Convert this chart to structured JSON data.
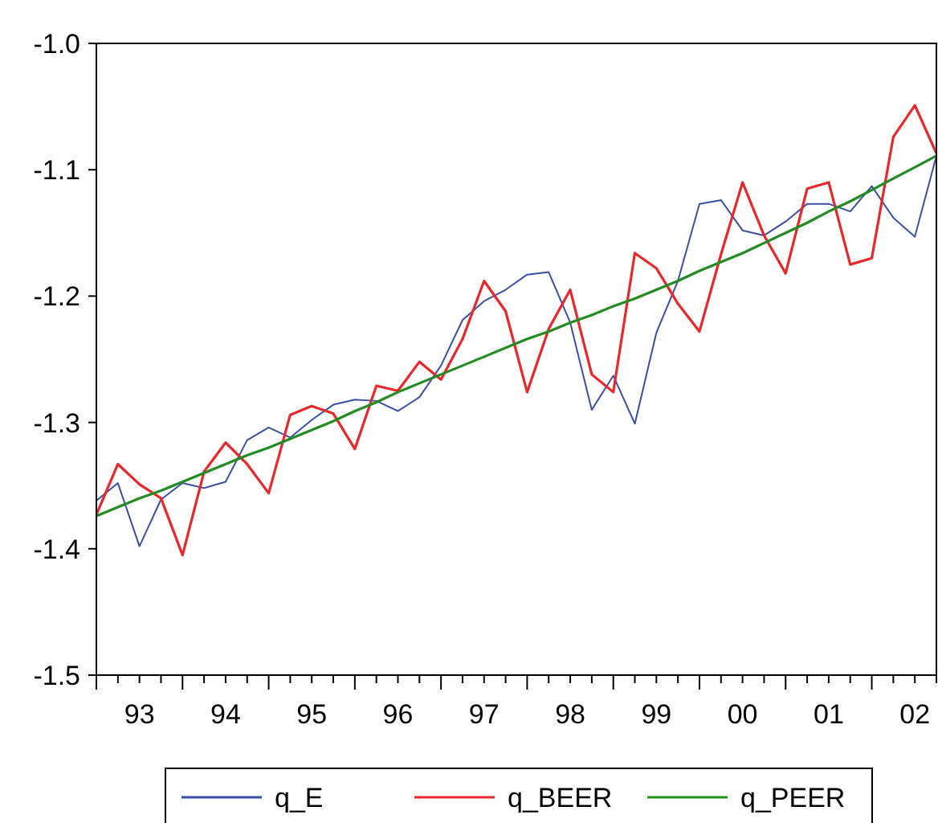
{
  "chart_data": {
    "type": "line",
    "categories": [
      null,
      null,
      "93",
      null,
      null,
      null,
      "94",
      null,
      null,
      null,
      "95",
      null,
      null,
      null,
      "96",
      null,
      null,
      null,
      "97",
      null,
      null,
      null,
      "98",
      null,
      null,
      null,
      "99",
      null,
      null,
      null,
      "00",
      null,
      null,
      null,
      "01",
      null,
      null,
      null,
      "02",
      null
    ],
    "series": [
      {
        "name": "q_E",
        "color": "#3a50a8",
        "values": [
          -1.362,
          -1.348,
          -1.398,
          -1.361,
          -1.348,
          -1.352,
          -1.347,
          -1.314,
          -1.304,
          -1.312,
          -1.298,
          -1.286,
          -1.282,
          -1.283,
          -1.291,
          -1.28,
          -1.255,
          -1.219,
          -1.204,
          -1.195,
          -1.183,
          -1.181,
          -1.221,
          -1.29,
          -1.263,
          -1.301,
          -1.229,
          -1.188,
          -1.127,
          -1.124,
          -1.148,
          -1.152,
          -1.141,
          -1.127,
          -1.127,
          -1.133,
          -1.113,
          -1.138,
          -1.153,
          -1.089
        ]
      },
      {
        "name": "q_BEER",
        "color": "#e8282a",
        "values": [
          -1.373,
          -1.333,
          -1.349,
          -1.36,
          -1.405,
          -1.339,
          -1.316,
          -1.333,
          -1.356,
          -1.294,
          -1.287,
          -1.293,
          -1.321,
          -1.271,
          -1.275,
          -1.252,
          -1.266,
          -1.234,
          -1.188,
          -1.212,
          -1.276,
          -1.226,
          -1.195,
          -1.262,
          -1.276,
          -1.166,
          -1.178,
          -1.206,
          -1.228,
          -1.167,
          -1.11,
          -1.152,
          -1.182,
          -1.115,
          -1.11,
          -1.175,
          -1.17,
          -1.074,
          -1.049,
          -1.087
        ]
      },
      {
        "name": "q_PEER",
        "color": "#228b22",
        "values": [
          -1.374,
          -1.367,
          -1.36,
          -1.354,
          -1.347,
          -1.34,
          -1.333,
          -1.326,
          -1.32,
          -1.313,
          -1.306,
          -1.299,
          -1.291,
          -1.284,
          -1.276,
          -1.269,
          -1.262,
          -1.255,
          -1.248,
          -1.241,
          -1.234,
          -1.228,
          -1.221,
          -1.215,
          -1.208,
          -1.202,
          -1.195,
          -1.188,
          -1.18,
          -1.173,
          -1.166,
          -1.158,
          -1.15,
          -1.142,
          -1.133,
          -1.125,
          -1.116,
          -1.107,
          -1.098,
          -1.089
        ]
      }
    ],
    "ylim": [
      -1.5,
      -1.0
    ],
    "yticks": [
      {
        "value": -1.5,
        "label": "-1.5"
      },
      {
        "value": -1.4,
        "label": "-1.4"
      },
      {
        "value": -1.3,
        "label": "-1.3"
      },
      {
        "value": -1.2,
        "label": "-1.2"
      },
      {
        "value": -1.1,
        "label": "-1.1"
      },
      {
        "value": -1.0,
        "label": "-1.0"
      }
    ],
    "legend": "bottom",
    "grid": false,
    "marker": "none",
    "line_style": "solid"
  }
}
